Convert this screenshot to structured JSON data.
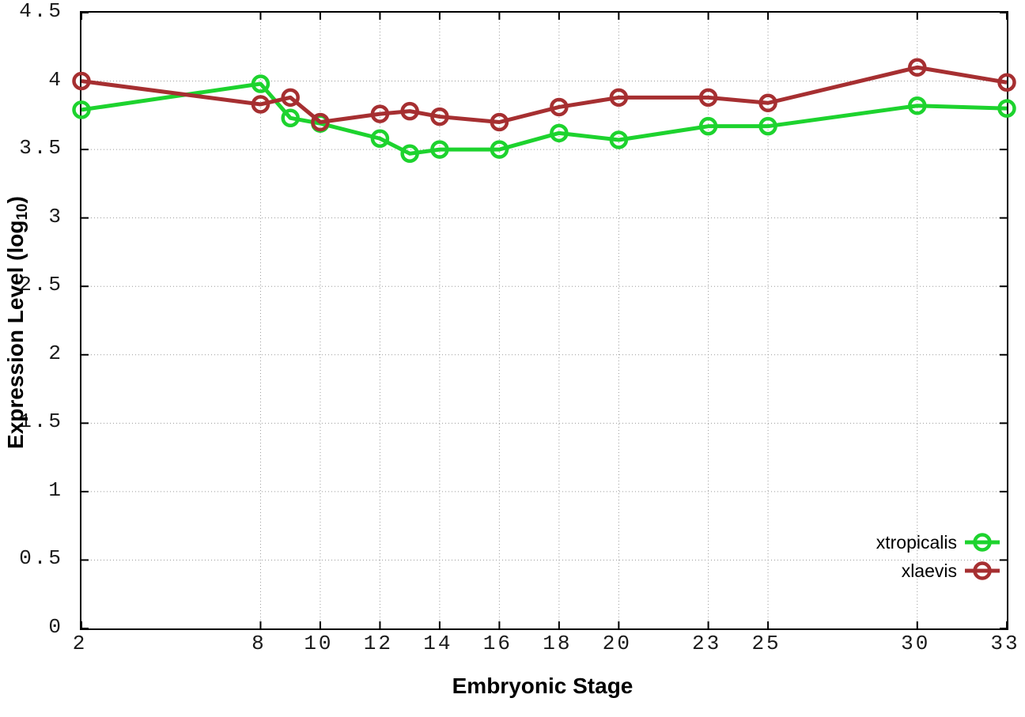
{
  "axes": {
    "xlabel": "Embryonic Stage",
    "ylabel_main": "Expression Level (log",
    "ylabel_sub": "10",
    "ylabel_end": ")"
  },
  "chart_data": {
    "type": "line",
    "title": "",
    "xlabel": "Embryonic Stage",
    "ylabel": "Expression Level (log10)",
    "x": [
      2,
      8,
      9,
      10,
      12,
      13,
      14,
      16,
      18,
      20,
      23,
      25,
      30,
      33
    ],
    "series": [
      {
        "name": "xtropicalis",
        "color": "#1dd32e",
        "values": [
          3.79,
          3.98,
          3.73,
          3.69,
          3.58,
          3.47,
          3.5,
          3.5,
          3.62,
          3.57,
          3.67,
          3.67,
          3.82,
          3.8
        ]
      },
      {
        "name": "xlaevis",
        "color": "#a62f31",
        "values": [
          4.0,
          3.83,
          3.88,
          3.7,
          3.76,
          3.78,
          3.74,
          3.7,
          3.81,
          3.88,
          3.88,
          3.84,
          4.1,
          3.99
        ]
      }
    ],
    "x_ticks": [
      2,
      8,
      10,
      12,
      14,
      16,
      18,
      20,
      23,
      25,
      30,
      33
    ],
    "y_ticks": [
      0,
      0.5,
      1,
      1.5,
      2,
      2.5,
      3,
      3.5,
      4,
      4.5
    ],
    "xlim": [
      2,
      33
    ],
    "ylim": [
      0,
      4.5
    ],
    "grid": true,
    "grid_style": "dotted",
    "legend_position": "inside-bottom-right",
    "background_color": "#ffffff",
    "border_color": "#000000",
    "gridline_color": "#9a9a9a"
  }
}
